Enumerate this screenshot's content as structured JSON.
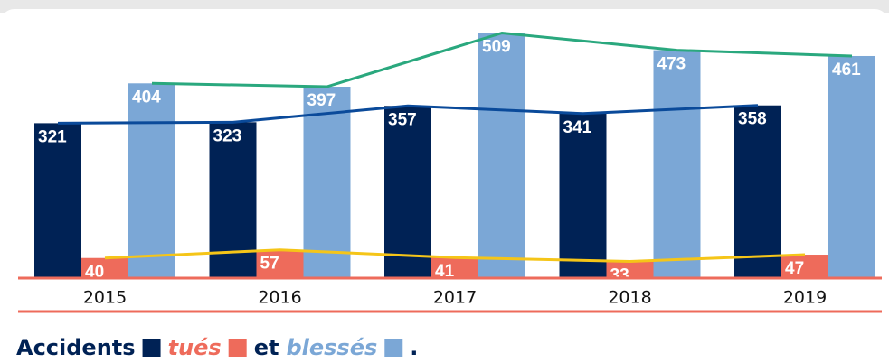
{
  "chart_data": {
    "type": "bar",
    "categories": [
      "2015",
      "2016",
      "2017",
      "2018",
      "2019"
    ],
    "series": [
      {
        "name": "Accidents",
        "color": "#002255",
        "line_color": "#0a4a9a",
        "values": [
          321,
          323,
          357,
          341,
          358
        ]
      },
      {
        "name": "tués",
        "color": "#ee6b5b",
        "line_color": "#f5c518",
        "values": [
          40,
          57,
          41,
          33,
          47
        ]
      },
      {
        "name": "blessés",
        "color": "#7ba7d6",
        "line_color": "#2aa87e",
        "values": [
          404,
          397,
          509,
          473,
          461
        ]
      }
    ],
    "ylim": [
      0,
      540
    ],
    "caption_joiner": "et",
    "caption_end": "."
  }
}
